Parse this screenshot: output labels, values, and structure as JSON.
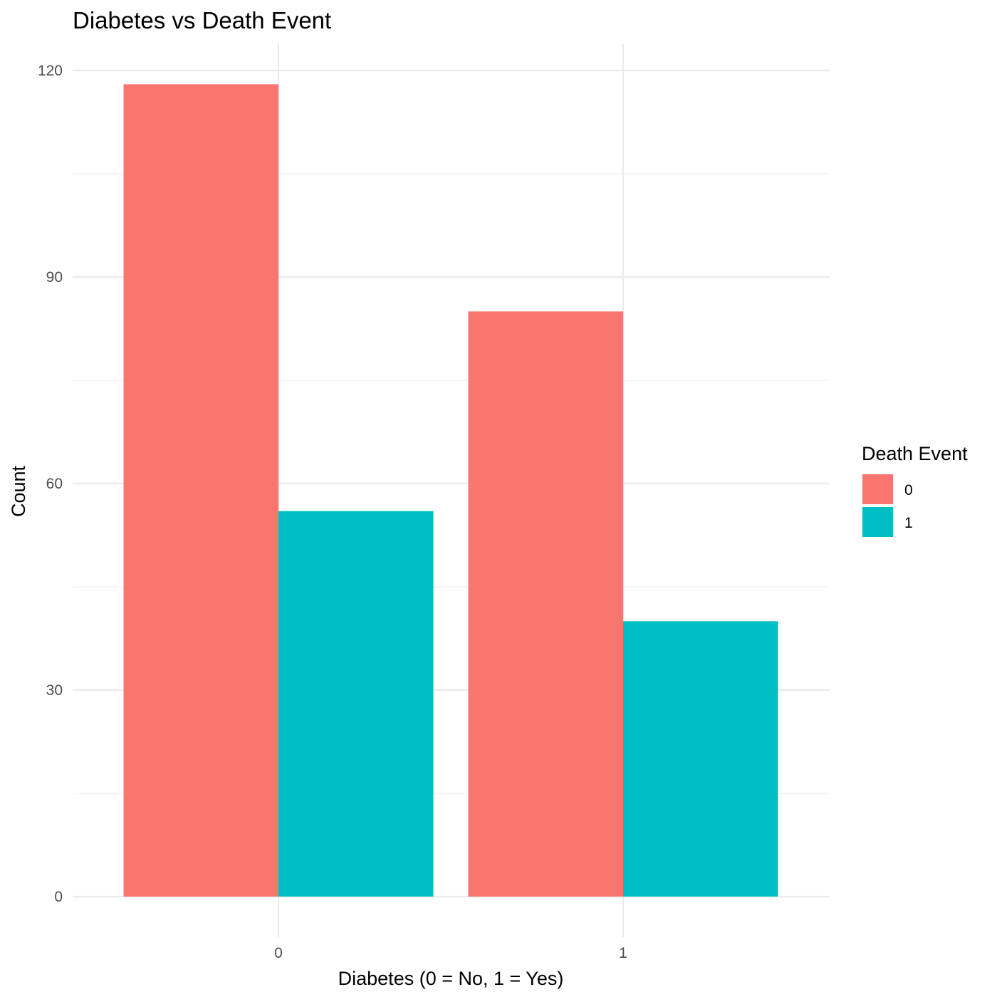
{
  "chart_data": {
    "type": "bar",
    "title": "Diabetes vs Death Event",
    "xlabel": "Diabetes (0 = No, 1 = Yes)",
    "ylabel": "Count",
    "categories": [
      "0",
      "1"
    ],
    "ylim": [
      0,
      124
    ],
    "yticks": [
      0,
      30,
      60,
      90,
      120
    ],
    "grid": true,
    "legend": {
      "title": "Death Event",
      "placement": "right"
    },
    "series": [
      {
        "name": "0",
        "color": "#F8766D",
        "values": [
          118,
          85
        ]
      },
      {
        "name": "1",
        "color": "#00BFC4",
        "values": [
          56,
          40
        ]
      }
    ]
  }
}
